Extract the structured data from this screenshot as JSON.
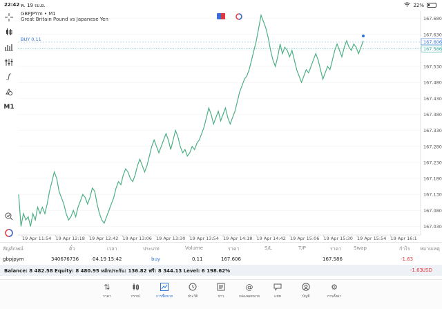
{
  "status": {
    "time": "22:42",
    "date": "พ. 19 เม.ย.",
    "battery": "22%",
    "battery_fraction": 0.22
  },
  "toolbar": {
    "icons": [
      "crosshair-icon",
      "indicators-icon",
      "objects-icon",
      "settings-icon",
      "function-icon",
      "shapes-icon"
    ],
    "timeframe": "M1"
  },
  "chart": {
    "symbol_line": "GBPJPYm • M1",
    "description": "Great Britain Pound vs Japanese Yen",
    "buy_label": "BUY 0.11",
    "colors": {
      "line": "#4caf83",
      "buy": "#2d72d9",
      "bid": "#26a69a",
      "grid": "#e8e8e8"
    }
  },
  "chart_data": {
    "type": "line",
    "x_ticks": [
      "19 Apr 11:54",
      "19 Apr 12:18",
      "19 Apr 12:42",
      "19 Apr 13:06",
      "19 Apr 13:30",
      "19 Apr 13:54",
      "19 Apr 14:18",
      "19 Apr 14:42",
      "19 Apr 15:06",
      "19 Apr 15:30",
      "19 Apr 15:54",
      "19 Apr 16:1"
    ],
    "y_ticks": [
      "167.680",
      "167.630",
      "167.580",
      "167.530",
      "167.480",
      "167.430",
      "167.380",
      "167.330",
      "167.280",
      "167.230",
      "167.180",
      "167.130",
      "167.080",
      "167.030"
    ],
    "ylim": [
      167.003,
      167.703
    ],
    "buy_price": "167.606",
    "bid_price": "167.586",
    "values": [
      167.13,
      167.03,
      167.07,
      167.05,
      167.06,
      167.03,
      167.07,
      167.05,
      167.09,
      167.07,
      167.09,
      167.07,
      167.1,
      167.14,
      167.17,
      167.2,
      167.18,
      167.14,
      167.12,
      167.1,
      167.07,
      167.05,
      167.06,
      167.08,
      167.06,
      167.09,
      167.11,
      167.13,
      167.12,
      167.1,
      167.12,
      167.15,
      167.14,
      167.1,
      167.07,
      167.05,
      167.04,
      167.06,
      167.08,
      167.1,
      167.12,
      167.15,
      167.17,
      167.16,
      167.19,
      167.21,
      167.2,
      167.18,
      167.17,
      167.19,
      167.22,
      167.24,
      167.22,
      167.2,
      167.22,
      167.25,
      167.28,
      167.3,
      167.28,
      167.26,
      167.28,
      167.3,
      167.32,
      167.3,
      167.27,
      167.3,
      167.33,
      167.31,
      167.28,
      167.26,
      167.27,
      167.25,
      167.26,
      167.28,
      167.27,
      167.29,
      167.3,
      167.32,
      167.34,
      167.37,
      167.4,
      167.38,
      167.35,
      167.37,
      167.39,
      167.36,
      167.38,
      167.4,
      167.37,
      167.35,
      167.37,
      167.39,
      167.42,
      167.45,
      167.47,
      167.49,
      167.5,
      167.52,
      167.55,
      167.58,
      167.61,
      167.65,
      167.69,
      167.67,
      167.65,
      167.62,
      167.58,
      167.55,
      167.53,
      167.56,
      167.6,
      167.57,
      167.59,
      167.58,
      167.56,
      167.58,
      167.55,
      167.52,
      167.5,
      167.48,
      167.5,
      167.52,
      167.51,
      167.53,
      167.55,
      167.57,
      167.55,
      167.52,
      167.49,
      167.51,
      167.53,
      167.52,
      167.55,
      167.58,
      167.6,
      167.58,
      167.56,
      167.59,
      167.61,
      167.59,
      167.58,
      167.6,
      167.59,
      167.57,
      167.59,
      167.61
    ]
  },
  "positions": {
    "headers": [
      "สัญลักษณ์",
      "ตั๋ว",
      "เวลา",
      "ประเภท",
      "Volume",
      "ราคา",
      "S/L",
      "T/P",
      "ราคา",
      "Swap",
      "กำไร",
      "หมายเหตุ"
    ],
    "row": {
      "symbol": "gbpjpym",
      "ticket": "340676736",
      "time": "04.19 15:42",
      "type": "buy",
      "volume": "0.11",
      "price": "167.606",
      "sl": "",
      "tp": "",
      "current": "167.586",
      "swap": "",
      "profit": "-1.63",
      "comment": ""
    },
    "balance_line": "Balance: 8 482.58 Equity: 8 480.95 หลักประกัน: 136.82 ฟรี: 8 344.13 Level: 6 198.62%",
    "total_profit": "-1.63",
    "currency": "USD"
  },
  "nav": {
    "items": [
      {
        "label": "ราคา",
        "icon": "quotes-icon"
      },
      {
        "label": "กราฟ",
        "icon": "chart-icon"
      },
      {
        "label": "การซื้อขาย",
        "icon": "trade-icon"
      },
      {
        "label": "ประวัติ",
        "icon": "history-icon"
      },
      {
        "label": "ข่าว",
        "icon": "news-icon"
      },
      {
        "label": "กล่องจดหมาย",
        "icon": "mailbox-icon"
      },
      {
        "label": "แชท",
        "icon": "chat-icon"
      },
      {
        "label": "บัญชี",
        "icon": "account-icon"
      },
      {
        "label": "การตั้งค่า",
        "icon": "settings-icon"
      }
    ]
  }
}
